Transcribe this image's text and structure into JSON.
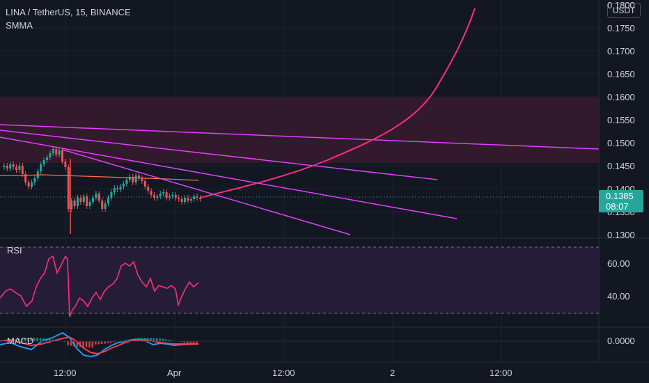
{
  "header": {
    "symbol_line": "LINA / TetherUS, 15, BINANCE",
    "indicator": "SMMA",
    "currency_button": "USDT"
  },
  "price_axis": {
    "labels": [
      "0.1800",
      "0.1750",
      "0.1700",
      "0.1650",
      "0.1600",
      "0.1550",
      "0.1500",
      "0.1450",
      "0.1400",
      "0.1350",
      "0.1300"
    ],
    "current_price": "0.1385",
    "countdown": "08:07"
  },
  "rsi_panel": {
    "label": "RSI",
    "axis_labels": [
      "60.00",
      "40.00"
    ]
  },
  "macd_panel": {
    "label": "MACD",
    "axis_labels": [
      "0.0000"
    ]
  },
  "time_axis": {
    "labels": [
      "12:00",
      "Apr",
      "12:00",
      "2",
      "12:00"
    ]
  },
  "colors": {
    "background": "#131722",
    "up_candle": "#26a69a",
    "down_candle": "#ef5350",
    "trendline": "#e040fb",
    "projection": "#ff2d7a",
    "resistance_zone": "#3a1a2e",
    "rsi_zone": "#2a1f3d",
    "rsi_line": "#ff2d7a",
    "smma": "#ff7043"
  }
}
